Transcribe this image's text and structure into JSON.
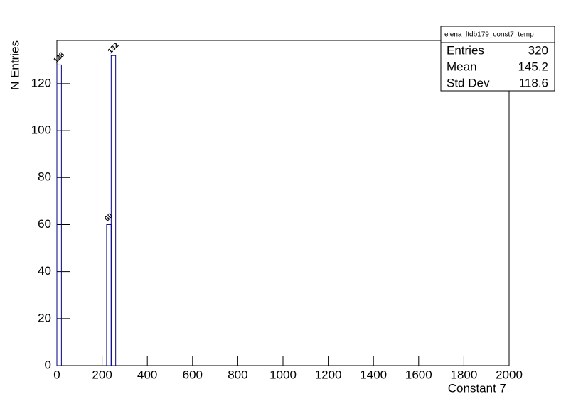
{
  "chart_data": {
    "type": "histogram",
    "bins": [
      0,
      20,
      220,
      240,
      260
    ],
    "values": [
      128,
      0,
      60,
      132
    ],
    "color": "#000080",
    "xlabel": "Constant 7",
    "ylabel": "N Entries",
    "xlim": [
      0,
      2000
    ],
    "ylim": [
      0,
      138.4
    ],
    "xticks": [
      0,
      200,
      400,
      600,
      800,
      1000,
      1200,
      1400,
      1600,
      1800,
      2000
    ],
    "yticks": [
      0,
      20,
      40,
      60,
      80,
      100,
      120
    ],
    "stats": {
      "title": "elena_ltdb179_const7_temp",
      "rows": [
        {
          "name": "Entries",
          "value": 320
        },
        {
          "name": "Mean",
          "value": 145.2
        },
        {
          "name": "Std Dev",
          "value": 118.6
        }
      ]
    }
  }
}
